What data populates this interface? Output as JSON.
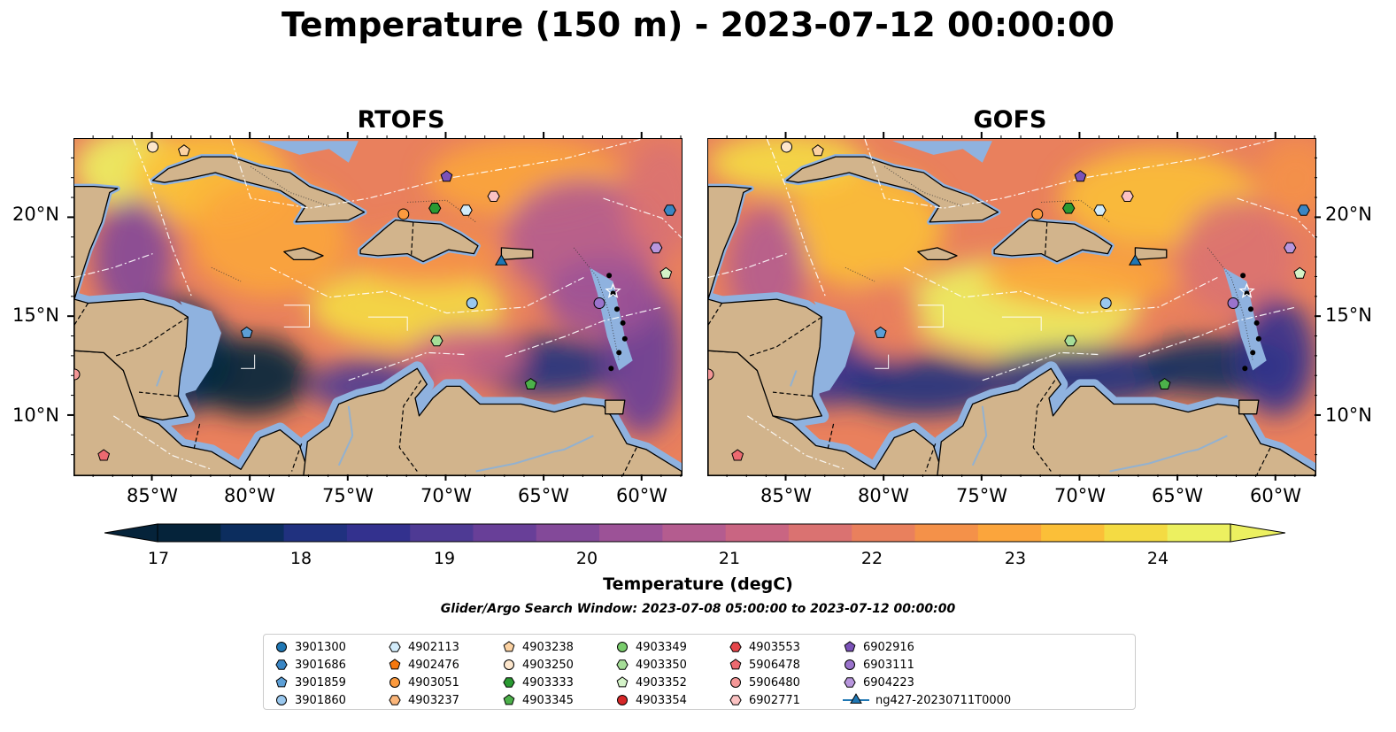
{
  "title": "Temperature (150 m) - 2023-07-12 00:00:00",
  "panels": [
    {
      "title": "RTOFS",
      "model": "rtofs"
    },
    {
      "title": "GOFS",
      "model": "gofs"
    }
  ],
  "axes": {
    "lon_ticks": [
      "85°W",
      "80°W",
      "75°W",
      "70°W",
      "65°W",
      "60°W"
    ],
    "lat_ticks": [
      "20°N",
      "15°N",
      "10°N"
    ],
    "lon_range": [
      -89,
      -58
    ],
    "lat_range": [
      7,
      24
    ]
  },
  "colorbar": {
    "label": "Temperature (degC)",
    "ticks": [
      "17",
      "18",
      "19",
      "20",
      "21",
      "22",
      "23",
      "24"
    ],
    "range": [
      16.75,
      24.5
    ],
    "extend": "both",
    "colors": [
      "#05233a",
      "#0c2d5e",
      "#20317f",
      "#33318e",
      "#4e3a94",
      "#683f98",
      "#834999",
      "#9c5297",
      "#b45c8f",
      "#c96582",
      "#da7271",
      "#e9805d",
      "#f49149",
      "#fba53c",
      "#fbbf38",
      "#f4db43",
      "#ecf060"
    ]
  },
  "search_window": "Glider/Argo Search Window: 2023-07-08 05:00:00 to 2023-07-12 00:00:00",
  "legend": [
    {
      "label": "3901300",
      "marker": "circle",
      "color": "#1f77b4"
    },
    {
      "label": "3901686",
      "marker": "hexagon",
      "color": "#3a86c4"
    },
    {
      "label": "3901859",
      "marker": "pentagon",
      "color": "#5c9fd6"
    },
    {
      "label": "3901860",
      "marker": "circle",
      "color": "#9ac8ee"
    },
    {
      "label": "4902113",
      "marker": "hexagon",
      "color": "#d2ecfb"
    },
    {
      "label": "4902476",
      "marker": "pentagon",
      "color": "#f5780f"
    },
    {
      "label": "4903051",
      "marker": "circle",
      "color": "#fb9a3e"
    },
    {
      "label": "4903237",
      "marker": "hexagon",
      "color": "#fbb67a"
    },
    {
      "label": "4903238",
      "marker": "pentagon",
      "color": "#fcd2a2"
    },
    {
      "label": "4903250",
      "marker": "circle",
      "color": "#fde6cc"
    },
    {
      "label": "4903333",
      "marker": "hexagon",
      "color": "#2a9a32"
    },
    {
      "label": "4903345",
      "marker": "pentagon",
      "color": "#4cb04a"
    },
    {
      "label": "4903349",
      "marker": "circle",
      "color": "#79cc6c"
    },
    {
      "label": "4903350",
      "marker": "hexagon",
      "color": "#a6de98"
    },
    {
      "label": "4903352",
      "marker": "pentagon",
      "color": "#d4f3c8"
    },
    {
      "label": "4903354",
      "marker": "circle",
      "color": "#d62728"
    },
    {
      "label": "4903553",
      "marker": "hexagon",
      "color": "#e4454a"
    },
    {
      "label": "5906478",
      "marker": "pentagon",
      "color": "#ec6a70"
    },
    {
      "label": "5906480",
      "marker": "circle",
      "color": "#f49797"
    },
    {
      "label": "6902771",
      "marker": "hexagon",
      "color": "#fbc2c2"
    },
    {
      "label": "6902916",
      "marker": "pentagon",
      "color": "#7b52b8"
    },
    {
      "label": "6903111",
      "marker": "circle",
      "color": "#9a73cc"
    },
    {
      "label": "6904223",
      "marker": "hexagon",
      "color": "#b896dd"
    },
    {
      "label": "ng427-20230711T0000",
      "marker": "triangle",
      "color": "#1f77b4"
    }
  ],
  "floats": [
    {
      "id": "3901686",
      "lon": -58.6,
      "lat": 20.4
    },
    {
      "id": "3901860",
      "lon": -68.7,
      "lat": 15.7
    },
    {
      "id": "4902113",
      "lon": -69.0,
      "lat": 20.4
    },
    {
      "id": "4903051",
      "lon": -72.2,
      "lat": 20.2
    },
    {
      "id": "4903333",
      "lon": -70.6,
      "lat": 20.5
    },
    {
      "id": "4903345",
      "lon": -65.7,
      "lat": 11.6
    },
    {
      "id": "4903350",
      "lon": -70.5,
      "lat": 13.8
    },
    {
      "id": "4903352",
      "lon": -58.8,
      "lat": 17.2
    },
    {
      "id": "5906478",
      "lon": -87.5,
      "lat": 8.0
    },
    {
      "id": "5906480",
      "lon": -89.0,
      "lat": 12.1
    },
    {
      "id": "6902771",
      "lon": -67.6,
      "lat": 21.1
    },
    {
      "id": "6902916",
      "lon": -70.0,
      "lat": 22.1
    },
    {
      "id": "6903111",
      "lon": -62.2,
      "lat": 15.7
    },
    {
      "id": "6904223",
      "lon": -59.3,
      "lat": 18.5
    },
    {
      "id": "3901859",
      "lon": -80.2,
      "lat": 14.2
    },
    {
      "id": "4903238",
      "lon": -83.4,
      "lat": 23.4
    },
    {
      "id": "4903250",
      "lon": -85.0,
      "lat": 23.6
    }
  ],
  "glider": {
    "id": "ng427-20230711T0000",
    "lon": -67.2,
    "lat": 17.8
  }
}
